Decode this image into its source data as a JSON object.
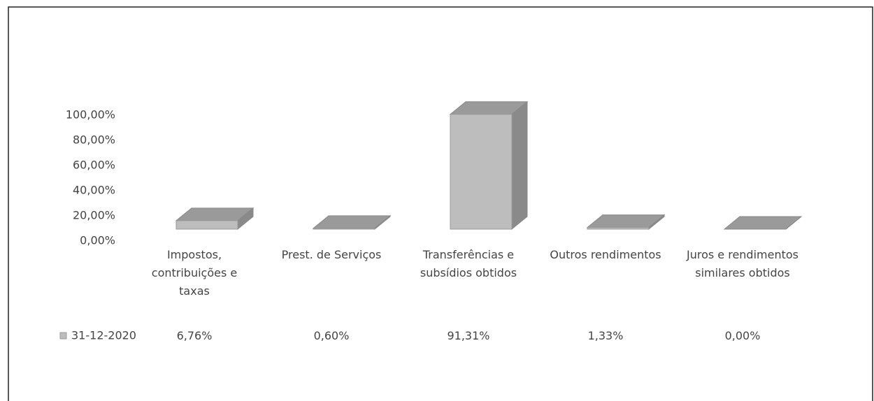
{
  "chart_data": {
    "type": "bar",
    "categories": [
      "Impostos, contribuições e taxas",
      "Prest. de Serviços",
      "Transferências e subsídios obtidos",
      "Outros rendimentos",
      "Juros e rendimentos similares obtidos"
    ],
    "series": [
      {
        "name": "31-12-2020",
        "color": "#bdbdbd",
        "values": [
          6.76,
          0.6,
          91.31,
          1.33,
          0
        ],
        "value_labels": [
          "6,76%",
          "0,60%",
          "91,31%",
          "1,33%",
          "0,00%"
        ]
      }
    ],
    "ylim": [
      0,
      100
    ],
    "yticks": [
      {
        "value": 0,
        "label": "0,00%"
      },
      {
        "value": 20,
        "label": "20,00%"
      },
      {
        "value": 40,
        "label": "40,00%"
      },
      {
        "value": 60,
        "label": "60,00%"
      },
      {
        "value": 80,
        "label": "80,00%"
      },
      {
        "value": 100,
        "label": "100,00%"
      }
    ],
    "grid": false
  }
}
